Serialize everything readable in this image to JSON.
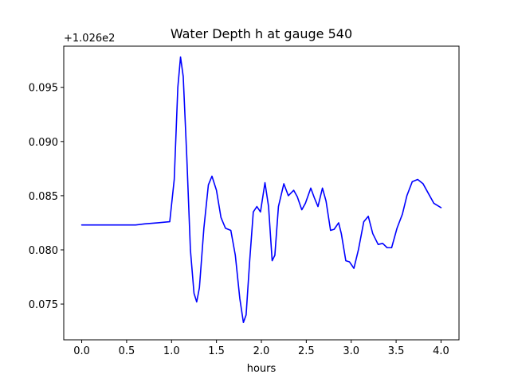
{
  "chart_data": {
    "type": "line",
    "title": "Water Depth h at gauge 540",
    "xlabel": "hours",
    "ylabel": "",
    "offset_label": "+1.026e2",
    "xlim": [
      -0.2,
      4.2
    ],
    "ylim": [
      0.0717,
      0.0988
    ],
    "xticks": [
      0.0,
      0.5,
      1.0,
      1.5,
      2.0,
      2.5,
      3.0,
      3.5,
      4.0
    ],
    "xtick_labels": [
      "0.0",
      "0.5",
      "1.0",
      "1.5",
      "2.0",
      "2.5",
      "3.0",
      "3.5",
      "4.0"
    ],
    "yticks": [
      0.075,
      0.08,
      0.085,
      0.09,
      0.095
    ],
    "ytick_labels": [
      "0.075",
      "0.080",
      "0.085",
      "0.090",
      "0.095"
    ],
    "grid": false,
    "series": [
      {
        "name": "",
        "color": "#0000ff",
        "points": [
          [
            0.0,
            0.0823
          ],
          [
            0.3,
            0.0823
          ],
          [
            0.6,
            0.0823
          ],
          [
            0.7,
            0.0824
          ],
          [
            0.85,
            0.0825
          ],
          [
            0.98,
            0.0826
          ],
          [
            1.03,
            0.0865
          ],
          [
            1.07,
            0.095
          ],
          [
            1.1,
            0.0978
          ],
          [
            1.13,
            0.096
          ],
          [
            1.17,
            0.0885
          ],
          [
            1.21,
            0.08
          ],
          [
            1.25,
            0.076
          ],
          [
            1.28,
            0.0752
          ],
          [
            1.31,
            0.0765
          ],
          [
            1.36,
            0.082
          ],
          [
            1.41,
            0.086
          ],
          [
            1.45,
            0.0868
          ],
          [
            1.5,
            0.0855
          ],
          [
            1.55,
            0.083
          ],
          [
            1.6,
            0.082
          ],
          [
            1.66,
            0.0818
          ],
          [
            1.71,
            0.0795
          ],
          [
            1.76,
            0.0755
          ],
          [
            1.8,
            0.0733
          ],
          [
            1.83,
            0.074
          ],
          [
            1.87,
            0.079
          ],
          [
            1.91,
            0.0835
          ],
          [
            1.95,
            0.084
          ],
          [
            1.99,
            0.0835
          ],
          [
            2.04,
            0.0862
          ],
          [
            2.08,
            0.084
          ],
          [
            2.12,
            0.079
          ],
          [
            2.15,
            0.0795
          ],
          [
            2.19,
            0.084
          ],
          [
            2.25,
            0.0861
          ],
          [
            2.3,
            0.085
          ],
          [
            2.36,
            0.0855
          ],
          [
            2.4,
            0.0849
          ],
          [
            2.45,
            0.0837
          ],
          [
            2.49,
            0.0843
          ],
          [
            2.55,
            0.0857
          ],
          [
            2.59,
            0.0848
          ],
          [
            2.63,
            0.084
          ],
          [
            2.68,
            0.0857
          ],
          [
            2.72,
            0.0845
          ],
          [
            2.77,
            0.0818
          ],
          [
            2.81,
            0.0819
          ],
          [
            2.86,
            0.0825
          ],
          [
            2.89,
            0.0815
          ],
          [
            2.94,
            0.079
          ],
          [
            2.98,
            0.0789
          ],
          [
            3.03,
            0.0783
          ],
          [
            3.08,
            0.08
          ],
          [
            3.14,
            0.0826
          ],
          [
            3.19,
            0.0831
          ],
          [
            3.24,
            0.0815
          ],
          [
            3.3,
            0.0805
          ],
          [
            3.35,
            0.0806
          ],
          [
            3.4,
            0.0802
          ],
          [
            3.45,
            0.0802
          ],
          [
            3.51,
            0.082
          ],
          [
            3.57,
            0.0833
          ],
          [
            3.62,
            0.085
          ],
          [
            3.68,
            0.0863
          ],
          [
            3.74,
            0.0865
          ],
          [
            3.8,
            0.0861
          ],
          [
            3.86,
            0.0852
          ],
          [
            3.92,
            0.0843
          ],
          [
            3.98,
            0.084
          ],
          [
            4.0,
            0.0839
          ]
        ]
      }
    ]
  }
}
